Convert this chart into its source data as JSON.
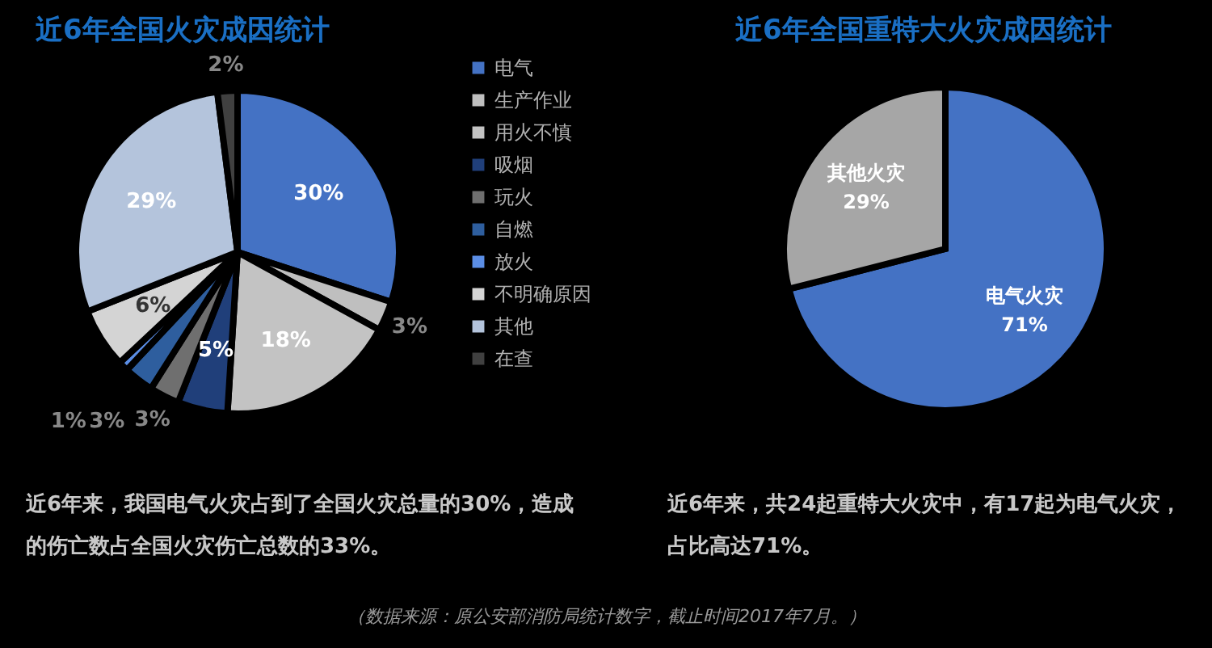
{
  "chart_data": [
    {
      "type": "pie",
      "title": "近6年全国火灾成因统计",
      "categories": [
        "电气",
        "生产作业",
        "用火不慎",
        "吸烟",
        "玩火",
        "自燃",
        "放火",
        "不明确原因",
        "其他",
        "在查"
      ],
      "values": [
        30,
        3,
        18,
        5,
        3,
        3,
        1,
        6,
        29,
        2
      ],
      "colors": [
        "#4472c4",
        "#bfbfbf",
        "#c3c3c3",
        "#203f7a",
        "#6f6f6f",
        "#2e5e9e",
        "#5b8ee6",
        "#d4d4d4",
        "#b4c4dc",
        "#404040"
      ],
      "value_labels": [
        "30%",
        "3%",
        "18%",
        "5%",
        "3%",
        "3%",
        "1%",
        "6%",
        "29%",
        "2%"
      ],
      "legend": "right",
      "annotations": [
        "近6年来，我国电气火灾占到了全国火灾总量的30%，造成的伤亡数占全国火灾伤亡总数的33%。",
        "（数据来源：原公安部消防局统计数字，截止时间2017年7月。）"
      ]
    },
    {
      "type": "pie",
      "title": "近6年全国重特大火灾成因统计",
      "categories": [
        "电气火灾",
        "其他火灾"
      ],
      "values": [
        71,
        29
      ],
      "colors": [
        "#4472c4",
        "#a6a6a6"
      ],
      "value_labels": [
        "71%",
        "29%"
      ],
      "annotations": [
        "近6年来，共24起重特大火灾中，有17起为电气火灾，占比高达71%。"
      ]
    }
  ]
}
